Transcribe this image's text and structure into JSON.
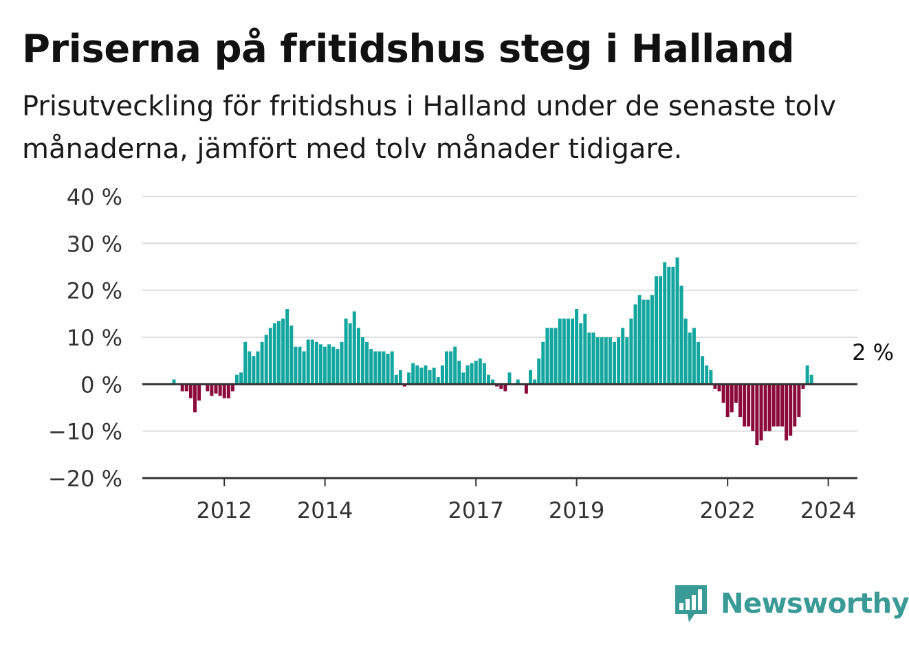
{
  "title": "Priserna på fritidshus steg i Halland",
  "subtitle": "Prisutveckling för fritidshus i Halland under de senaste tolv månaderna, jämfört med tolv månader tidigare.",
  "brand": {
    "name": "Newsworthy",
    "logo_icon": "bar-chart-speech-bubble-icon"
  },
  "colors": {
    "positive": "#13a69f",
    "negative": "#8c0a3a",
    "grid": "#dddddd",
    "axis": "#333333",
    "text": "#333333"
  },
  "chart_data": {
    "type": "bar",
    "title": "",
    "xlabel": "",
    "ylabel": "",
    "ylim": [
      -20,
      40
    ],
    "y_ticks": [
      {
        "value": 40,
        "label": "40 %"
      },
      {
        "value": 30,
        "label": "30 %"
      },
      {
        "value": 20,
        "label": "20 %"
      },
      {
        "value": 10,
        "label": "10 %"
      },
      {
        "value": 0,
        "label": "0 %"
      },
      {
        "value": -10,
        "label": "−10 %"
      },
      {
        "value": -20,
        "label": "−20 %"
      }
    ],
    "x_start": "2011-01",
    "x_ticks": [
      {
        "date": "2012-01",
        "label": "2012"
      },
      {
        "date": "2014-01",
        "label": "2014"
      },
      {
        "date": "2017-01",
        "label": "2017"
      },
      {
        "date": "2019-01",
        "label": "2019"
      },
      {
        "date": "2022-01",
        "label": "2022"
      },
      {
        "date": "2024-01",
        "label": "2024"
      }
    ],
    "grid": true,
    "annotation": {
      "date": "2024-11",
      "label": "2 %"
    },
    "series": [
      {
        "values": [
          1,
          0,
          -1.5,
          -1.5,
          -3,
          -6,
          -3.5,
          0,
          -1.5,
          -2.5,
          -2,
          -2.5,
          -3,
          -3,
          -1.5,
          2,
          2.5,
          9,
          7,
          6,
          7,
          9,
          10.5,
          12,
          13,
          13.5,
          14,
          16,
          12.5,
          8,
          8,
          7,
          9.5,
          9.5,
          9,
          8.5,
          8,
          8.5,
          8,
          7.5,
          9,
          14,
          13,
          15.5,
          12,
          10,
          9,
          7.5,
          7,
          7,
          7,
          6.5,
          7,
          2,
          3,
          -0.5,
          2.5,
          4.5,
          4,
          3.5,
          4,
          3,
          3.5,
          1.5,
          4,
          7,
          7,
          8,
          5,
          2.5,
          4,
          4.5,
          5,
          5.5,
          4.5,
          2,
          1,
          -0.5,
          -1,
          -1.5,
          2.5,
          0,
          1,
          0,
          -2,
          3,
          1,
          5.5,
          9,
          12,
          12,
          12,
          14,
          14,
          14,
          14,
          16,
          13,
          15,
          11,
          11,
          10,
          10,
          10,
          10,
          9,
          10,
          12,
          10,
          14,
          17,
          19,
          18,
          18,
          19,
          23,
          23,
          26,
          25,
          25,
          27,
          21,
          14,
          11,
          12,
          9,
          6,
          4,
          3,
          -1,
          -1.5,
          -4,
          -7,
          -6,
          -4,
          -7,
          -9,
          -9,
          -10,
          -13,
          -12,
          -10,
          -10,
          -9,
          -9,
          -9,
          -12,
          -11,
          -9,
          -7,
          -1,
          4,
          2
        ]
      }
    ]
  }
}
